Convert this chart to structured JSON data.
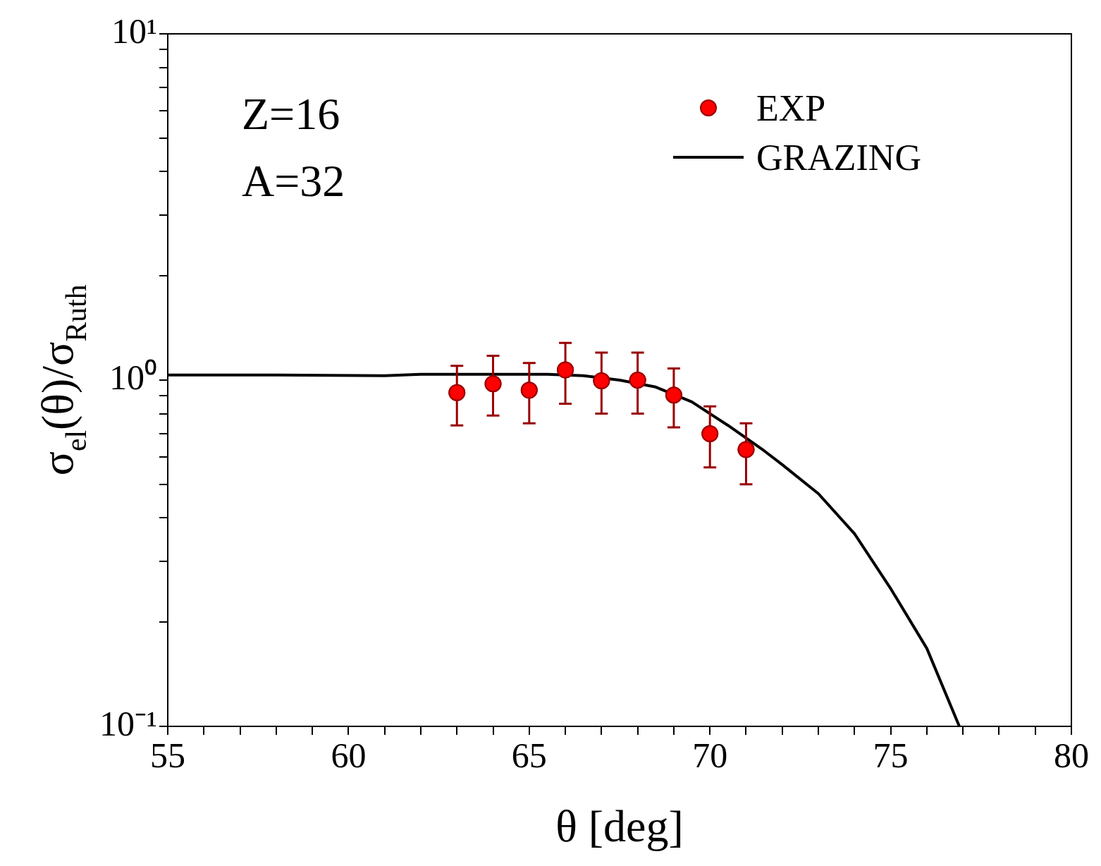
{
  "chart_data": {
    "type": "scatter",
    "xlabel": "θ [deg]",
    "ylabel": "σ$_{el}$(θ)/σ$_{Ruth}$",
    "annotations": [
      "Z=16",
      "A=32"
    ],
    "series": [
      {
        "name": "EXP",
        "marker": "circle",
        "color": "#ff0000",
        "x": [
          63,
          64,
          65,
          66,
          67,
          68,
          69,
          70,
          71
        ],
        "values": [
          0.92,
          0.976,
          0.935,
          1.07,
          0.995,
          1.0,
          0.905,
          0.7,
          0.63
        ],
        "errors": [
          [
            0.74,
            1.1
          ],
          [
            0.79,
            1.175
          ],
          [
            0.75,
            1.12
          ],
          [
            0.855,
            1.28
          ],
          [
            0.8,
            1.2
          ],
          [
            0.8,
            1.2
          ],
          [
            0.73,
            1.08
          ],
          [
            0.56,
            0.84
          ],
          [
            0.5,
            0.75
          ]
        ]
      },
      {
        "name": "GRAZING",
        "type": "line",
        "color": "#000000",
        "line_style": "solid",
        "x": [
          55,
          58,
          61,
          62,
          64,
          65.5,
          66.5,
          67.5,
          68.5,
          69.5,
          70.5,
          71.5,
          72,
          73,
          74,
          75,
          76,
          76.9
        ],
        "values": [
          1.034,
          1.034,
          1.03,
          1.04,
          1.04,
          1.04,
          1.03,
          1.0,
          0.955,
          0.865,
          0.74,
          0.625,
          0.57,
          0.47,
          0.36,
          0.25,
          0.168,
          0.1
        ]
      }
    ],
    "xlim": [
      55,
      80
    ],
    "ylim": [
      0.1,
      10
    ],
    "log": "y",
    "grid": false,
    "legend": "top right",
    "xticks": [
      55,
      {
        "value": 56,
        "label": null
      },
      {
        "value": 57,
        "label": null
      },
      {
        "value": 58,
        "label": null
      },
      {
        "value": 59,
        "label": null
      },
      60,
      {
        "value": 61,
        "label": null
      },
      {
        "value": 62,
        "label": null
      },
      {
        "value": 63,
        "label": null
      },
      {
        "value": 64,
        "label": null
      },
      65,
      {
        "value": 66,
        "label": null
      },
      {
        "value": 67,
        "label": null
      },
      {
        "value": 68,
        "label": null
      },
      {
        "value": 69,
        "label": null
      },
      70,
      {
        "value": 71,
        "label": null
      },
      {
        "value": 72,
        "label": null
      },
      {
        "value": 73,
        "label": null
      },
      {
        "value": 74,
        "label": null
      },
      75,
      {
        "value": 76,
        "label": null
      },
      {
        "value": 77,
        "label": null
      },
      {
        "value": 78,
        "label": null
      },
      {
        "value": 79,
        "label": null
      },
      80
    ],
    "yticks": [
      {
        "value": 0.1,
        "label": "10⁻¹"
      },
      {
        "value": 0.2,
        "label": null
      },
      {
        "value": 0.3,
        "label": null
      },
      {
        "value": 0.4,
        "label": null
      },
      {
        "value": 0.5,
        "label": null
      },
      {
        "value": 0.6,
        "label": null
      },
      {
        "value": 0.7,
        "label": null
      },
      {
        "value": 0.8,
        "label": null
      },
      {
        "value": 0.9,
        "label": null
      },
      {
        "value": 1,
        "label": "10⁰"
      },
      {
        "value": 2,
        "label": null
      },
      {
        "value": 3,
        "label": null
      },
      {
        "value": 4,
        "label": null
      },
      {
        "value": 5,
        "label": null
      },
      {
        "value": 6,
        "label": null
      },
      {
        "value": 7,
        "label": null
      },
      {
        "value": 8,
        "label": null
      },
      {
        "value": 9,
        "label": null
      },
      {
        "value": 10,
        "label": "10¹"
      }
    ]
  }
}
